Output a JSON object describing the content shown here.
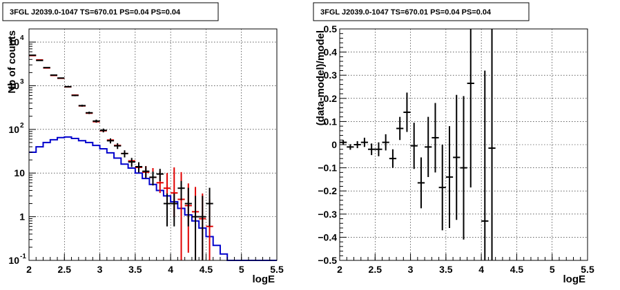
{
  "colors": {
    "data_black": "#000000",
    "model_red": "#e00000",
    "model_blue": "#0000cc",
    "grid": "#000000"
  },
  "chart_data": [
    {
      "type": "line",
      "title": "3FGL J2039.0-1047 TS=670.01 PS=0.04 PS=0.04",
      "xlabel": "logE",
      "ylabel": "Nb of counts",
      "yscale": "log",
      "xlim": [
        2,
        5.5
      ],
      "ylim": [
        0.1,
        20000
      ],
      "grid": true,
      "x_ticks": [
        "2",
        "2.5",
        "3",
        "3.5",
        "4",
        "4.5",
        "5",
        "5.5"
      ],
      "y_ticks": [
        {
          "v": 0.1,
          "label": "10",
          "exp": "-1"
        },
        {
          "v": 1,
          "label": "1",
          "exp": ""
        },
        {
          "v": 10,
          "label": "10",
          "exp": ""
        },
        {
          "v": 100,
          "label": "10",
          "exp": "2"
        },
        {
          "v": 1000,
          "label": "10",
          "exp": "3"
        },
        {
          "v": 10000,
          "label": "10",
          "exp": "4"
        }
      ],
      "bin_width": 0.1,
      "series": [
        {
          "role": "data",
          "color": "#000000",
          "x": [
            2.05,
            2.15,
            2.25,
            2.35,
            2.45,
            2.55,
            2.65,
            2.75,
            2.85,
            2.95,
            3.05,
            3.15,
            3.25,
            3.35,
            3.45,
            3.55,
            3.65,
            3.75,
            3.85,
            3.95,
            4.05,
            4.15,
            4.25,
            4.35,
            4.45,
            4.55
          ],
          "y": [
            5000,
            3800,
            2600,
            1750,
            1500,
            950,
            600,
            350,
            240,
            155,
            95,
            55,
            42,
            28,
            18,
            14,
            11,
            8,
            9.5,
            2,
            2,
            4.5,
            2,
            1,
            1,
            2
          ],
          "yerr_low": [
            70,
            60,
            50,
            40,
            38,
            30,
            24,
            18,
            15,
            12,
            9.5,
            7.3,
            6.4,
            5.2,
            4.2,
            3.7,
            3.3,
            2.8,
            3.0,
            1.4,
            1.4,
            2.1,
            1.4,
            0.95,
            0.95,
            1.4
          ],
          "yerr_high": [
            70,
            60,
            50,
            40,
            38,
            30,
            24,
            18,
            15,
            12,
            9.5,
            7.3,
            6.4,
            5.2,
            4.2,
            3.7,
            3.3,
            2.8,
            3.0,
            1.4,
            1.4,
            2.1,
            2.6,
            2.0,
            2.0,
            2.6
          ]
        },
        {
          "role": "model",
          "color": "#e00000",
          "x": [
            2.05,
            2.15,
            2.25,
            2.35,
            2.45,
            2.55,
            2.65,
            2.75,
            2.85,
            2.95,
            3.05,
            3.15,
            3.25,
            3.35,
            3.45,
            3.55,
            3.65,
            3.75,
            3.85,
            3.95,
            4.05,
            4.15,
            4.25,
            4.35,
            4.45,
            4.55
          ],
          "y": [
            4900,
            3900,
            2550,
            1720,
            1480,
            940,
            610,
            345,
            235,
            150,
            93,
            57,
            43,
            28,
            19,
            13.5,
            10.5,
            8,
            6,
            4.5,
            3.5,
            2.5,
            1.8,
            1.3,
            0.9,
            0.6
          ],
          "yerr_low": [
            0,
            0,
            0,
            0,
            0,
            0,
            0,
            0,
            0,
            0,
            0,
            0,
            0,
            0,
            0,
            2.5,
            2.5,
            2.5,
            2.5,
            2.5,
            2.5,
            2.5,
            1.65,
            1.21,
            0.83,
            0.55
          ],
          "yerr_high": [
            0,
            0,
            0,
            0,
            0,
            0,
            0,
            0,
            0,
            0,
            0,
            0,
            0,
            0,
            0,
            4.0,
            4.0,
            5.0,
            5.5,
            5.5,
            10.0,
            8.0,
            4.0,
            3.5,
            2.5,
            2.0
          ]
        },
        {
          "role": "model_histogram",
          "color": "#0000cc",
          "bin_edges": [
            2.0,
            2.1,
            2.2,
            2.3,
            2.4,
            2.5,
            2.6,
            2.7,
            2.8,
            2.9,
            3.0,
            3.1,
            3.2,
            3.3,
            3.4,
            3.5,
            3.6,
            3.7,
            3.8,
            3.9,
            4.0,
            4.1,
            4.2,
            4.3,
            4.4,
            4.5,
            4.6,
            4.7,
            4.8,
            4.9,
            5.0,
            5.1,
            5.2,
            5.3,
            5.4,
            5.5
          ],
          "values": [
            30,
            40,
            50,
            58,
            65,
            67,
            62,
            55,
            50,
            43,
            36,
            29,
            22,
            16,
            13,
            10,
            7.5,
            5.5,
            4.0,
            3.0,
            2.2,
            1.55,
            1.1,
            0.8,
            0.55,
            0.35,
            0.22,
            0.14,
            0.1,
            0.1,
            0.1,
            0.1,
            0.1,
            0.1,
            0.1
          ]
        }
      ]
    },
    {
      "type": "scatter",
      "title": "3FGL J2039.0-1047 TS=670.01 PS=0.04 PS=0.04",
      "xlabel": "logE",
      "ylabel": "(data-model)/model",
      "xlim": [
        2,
        5.5
      ],
      "ylim": [
        -0.5,
        0.5
      ],
      "grid": true,
      "x_ticks": [
        "2",
        "2.5",
        "3",
        "3.5",
        "4",
        "4.5",
        "5",
        "5.5"
      ],
      "y_ticks": [
        "−0.5",
        "−0.4",
        "−0.3",
        "−0.2",
        "−0.1",
        "0",
        "0.1",
        "0.2",
        "0.3",
        "0.4",
        "0.5"
      ],
      "bin_width": 0.1,
      "series": [
        {
          "role": "residual",
          "color": "#000000",
          "x": [
            2.05,
            2.15,
            2.25,
            2.35,
            2.45,
            2.55,
            2.65,
            2.75,
            2.85,
            2.95,
            3.05,
            3.15,
            3.25,
            3.35,
            3.45,
            3.55,
            3.65,
            3.75,
            3.85,
            4.05,
            4.15
          ],
          "y": [
            0.01,
            -0.01,
            0.0,
            0.01,
            -0.02,
            -0.02,
            0.01,
            -0.06,
            0.07,
            0.14,
            -0.005,
            -0.165,
            -0.01,
            0.03,
            -0.185,
            -0.14,
            -0.055,
            -0.1,
            0.265,
            -0.33,
            -0.015
          ],
          "yerr": [
            0.01,
            0.012,
            0.015,
            0.02,
            0.025,
            0.03,
            0.035,
            0.04,
            0.05,
            0.085,
            0.1,
            0.11,
            0.13,
            0.15,
            0.185,
            0.22,
            0.27,
            0.31,
            0.45,
            0.65,
            0.8
          ]
        }
      ]
    }
  ]
}
